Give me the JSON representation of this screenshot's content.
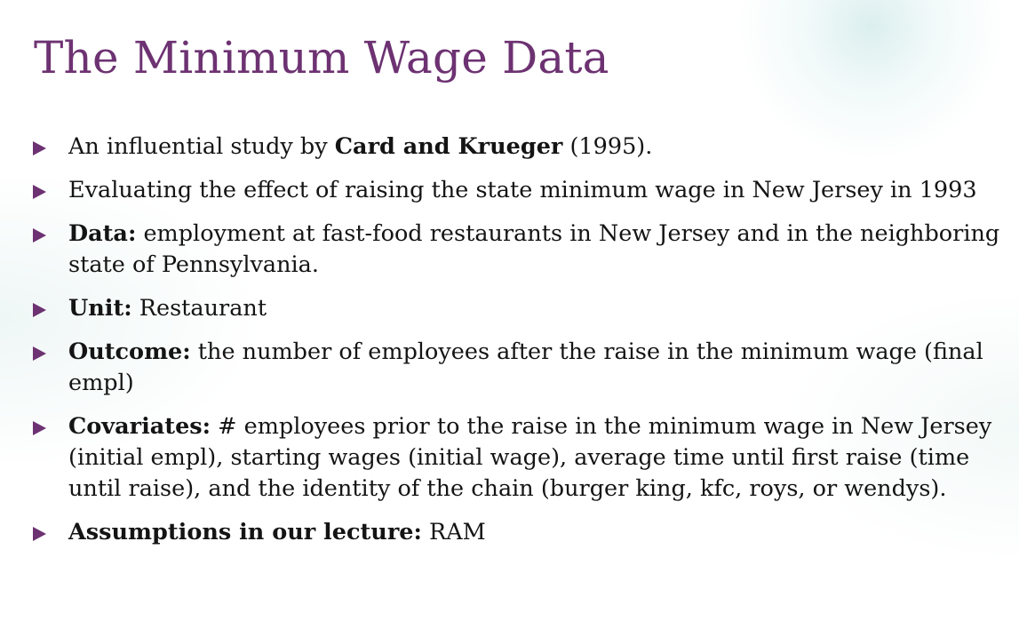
{
  "slide": {
    "title": "The Minimum Wage Data",
    "accent_color": "#6d3272",
    "bullets": [
      {
        "prefix": "An influential study by ",
        "bold": "Card and Krueger",
        "rest": " (1995)."
      },
      {
        "prefix": "",
        "bold": "",
        "rest": "Evaluating the effect of raising the state minimum wage in New Jersey in 1993"
      },
      {
        "prefix": "",
        "bold": "Data:",
        "rest": " employment at fast-food restaurants in New Jersey and in the neighboring state of Pennsylvania."
      },
      {
        "prefix": "",
        "bold": "Unit:",
        "rest": " Restaurant"
      },
      {
        "prefix": "",
        "bold": "Outcome:",
        "rest": " the number of employees after the raise in the minimum wage (final empl)"
      },
      {
        "prefix": "",
        "bold": "Covariates:",
        "rest": " # employees prior to the raise in the minimum wage in New Jersey (initial empl), starting wages (initial wage), average time until first raise (time until raise), and the identity of the chain (burger king, kfc, roys, or wendys)."
      },
      {
        "prefix": "",
        "bold": "Assumptions in our lecture:",
        "rest": " RAM"
      }
    ]
  }
}
